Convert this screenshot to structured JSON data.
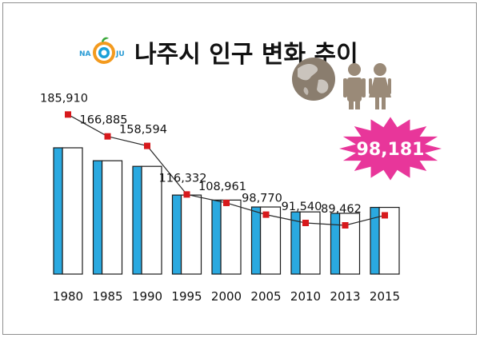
{
  "logo": {
    "left_text": "NA",
    "right_text": "JU"
  },
  "chart_data": {
    "type": "bar",
    "title": "나주시 인구 변화 추이",
    "categories": [
      "1980",
      "1985",
      "1990",
      "1995",
      "2000",
      "2005",
      "2010",
      "2013",
      "2015"
    ],
    "values": [
      185910,
      166885,
      158594,
      116332,
      108961,
      98770,
      91540,
      89462,
      98181
    ],
    "value_labels": [
      "185,910",
      "166,885",
      "158,594",
      "116,332",
      "108,961",
      "98,770",
      "91,540",
      "89,462",
      "98,181"
    ],
    "highlight": {
      "category": "2015",
      "label": "98,181"
    },
    "overlay": "line with square markers",
    "xlabel": "",
    "ylabel": "",
    "colors": {
      "bar_accent": "#2aa9e0",
      "bar_fill": "#ffffff",
      "marker": "#d7191c",
      "burst": "#e8369a"
    }
  },
  "decorations": [
    "globe-icon",
    "man-icon",
    "woman-icon"
  ]
}
